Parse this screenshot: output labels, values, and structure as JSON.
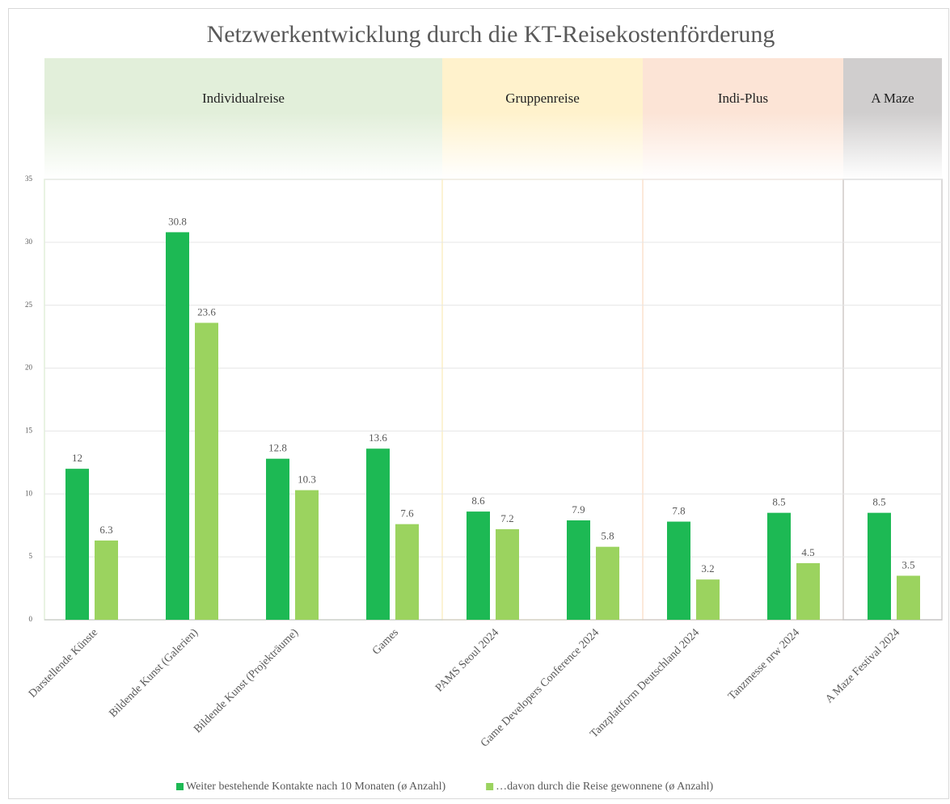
{
  "chart_data": {
    "type": "bar",
    "title": "Netzwerkentwicklung durch die KT-Reisekostenförderung",
    "categories": [
      "Darstellende Künste",
      "Bildende Kunst (Galerien)",
      "Bildende Kunst (Projekträume)",
      "Games",
      "PAMS Seoul 2024",
      "Game Developers Conference 2024",
      "Tanzplattform Deutschland 2024",
      "Tanzmesse nrw 2024",
      "A Maze Festival 2024"
    ],
    "groups": [
      {
        "label": "Individualreise",
        "span": 4,
        "color": "#e2efda"
      },
      {
        "label": "Gruppenreise",
        "span": 2,
        "color": "#fff2cc"
      },
      {
        "label": "Indi-Plus",
        "span": 2,
        "color": "#fce4d6"
      },
      {
        "label": "A Maze",
        "span": 1,
        "color": "#d0cece"
      }
    ],
    "series": [
      {
        "name": "Weiter bestehende Kontakte nach 10 Monaten (ø Anzahl)",
        "color": "#1db954",
        "values": [
          12,
          30.8,
          12.8,
          13.6,
          8.6,
          7.9,
          7.8,
          8.5,
          8.5
        ]
      },
      {
        "name": "…davon durch die Reise gewonnene (ø Anzahl)",
        "color": "#9bd35f",
        "values": [
          6.3,
          23.6,
          10.3,
          7.6,
          7.2,
          5.8,
          3.2,
          4.5,
          3.5
        ]
      }
    ],
    "ylim": [
      0,
      35
    ],
    "yticks": [
      0,
      5,
      10,
      15,
      20,
      25,
      30,
      35
    ],
    "grid": true,
    "legend": "bottom"
  }
}
